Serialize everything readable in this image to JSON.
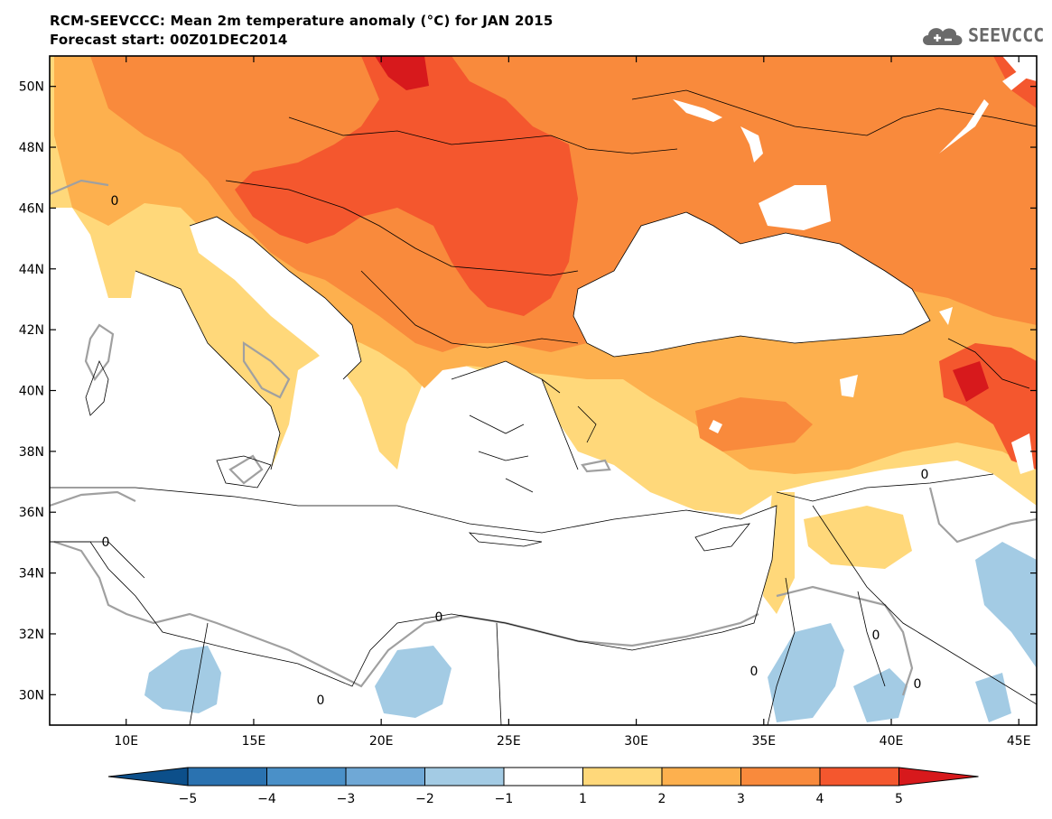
{
  "header": {
    "title": "RCM-SEEVCCC: Mean 2m temperature anomaly (°C) for JAN 2015",
    "subtitle": "Forecast start: 00Z01DEC2014"
  },
  "logo": {
    "text": "SEEVCCC",
    "icon": "cloud-icon"
  },
  "axes": {
    "y_labels": [
      {
        "label": "50N",
        "value": 50
      },
      {
        "label": "48N",
        "value": 48
      },
      {
        "label": "46N",
        "value": 46
      },
      {
        "label": "44N",
        "value": 44
      },
      {
        "label": "42N",
        "value": 42
      },
      {
        "label": "40N",
        "value": 40
      },
      {
        "label": "38N",
        "value": 38
      },
      {
        "label": "36N",
        "value": 36
      },
      {
        "label": "34N",
        "value": 34
      },
      {
        "label": "32N",
        "value": 32
      },
      {
        "label": "30N",
        "value": 30
      }
    ],
    "x_labels": [
      {
        "label": "10E",
        "value": 10
      },
      {
        "label": "15E",
        "value": 15
      },
      {
        "label": "20E",
        "value": 20
      },
      {
        "label": "25E",
        "value": 25
      },
      {
        "label": "30E",
        "value": 30
      },
      {
        "label": "35E",
        "value": 35
      },
      {
        "label": "40E",
        "value": 40
      },
      {
        "label": "45E",
        "value": 45
      }
    ],
    "lon_range": [
      7,
      45.7
    ],
    "lat_range": [
      29,
      51
    ]
  },
  "contour_labels": [
    "0",
    "0",
    "0",
    "0",
    "0",
    "0",
    "0",
    "0"
  ],
  "colorbar": {
    "tick_labels": [
      "−5",
      "−4",
      "−3",
      "−2",
      "−1",
      "1",
      "2",
      "3",
      "4",
      "5"
    ],
    "colors": [
      "#0c4f8a",
      "#2a72b0",
      "#4a90c8",
      "#6fa8d6",
      "#a3cbe4",
      "#ffffff",
      "#ffd87a",
      "#fdb04e",
      "#f98a3c",
      "#f4572e",
      "#d7191c"
    ]
  },
  "palette": {
    "c1": "#ffd87a",
    "c2": "#fdb04e",
    "c3": "#f98a3c",
    "c4": "#f4572e",
    "c5": "#d7191c",
    "neg1": "#a3cbe4",
    "neg2": "#6fa8d6",
    "zero_contour": "#a0a0a0"
  }
}
